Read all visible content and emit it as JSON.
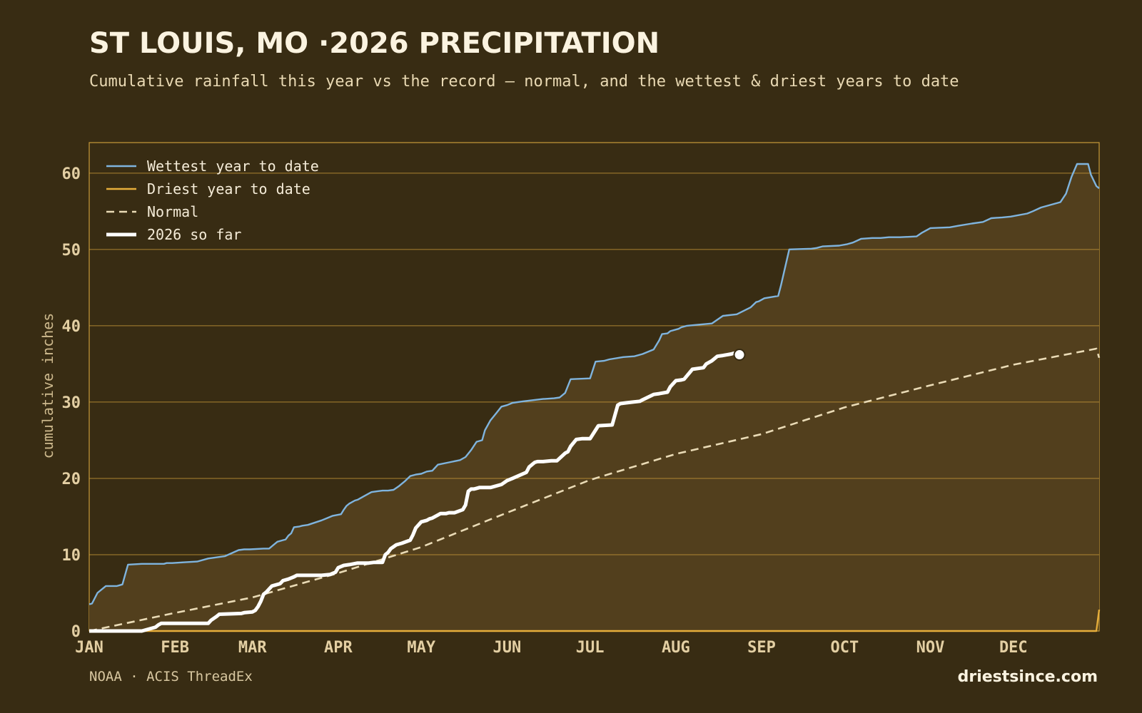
{
  "colors": {
    "background": "#382c13",
    "plot_fill": "#523f1d",
    "grid": "#c89a3a",
    "wettest": "#7fb4de",
    "driest": "#e6ae3b",
    "normal": "#eadbb6",
    "current": "#ffffff"
  },
  "footer": {
    "source": "NOAA · ACIS ThreadEx",
    "brand": "driestsince.com"
  },
  "chart_data": {
    "type": "line",
    "title": "ST LOUIS, MO ·2026 PRECIPITATION",
    "subtitle": "Cumulative rainfall this year vs the record — normal, and the wettest & driest years to date",
    "ylabel": "cumulative inches",
    "xlabel": "",
    "xlim": [
      1,
      366
    ],
    "ylim": [
      0,
      64
    ],
    "yticks": [
      0,
      10,
      20,
      30,
      40,
      50,
      60
    ],
    "x_ticks": [
      {
        "day": 1,
        "label": "JAN"
      },
      {
        "day": 32,
        "label": "FEB"
      },
      {
        "day": 60,
        "label": "MAR"
      },
      {
        "day": 91,
        "label": "APR"
      },
      {
        "day": 121,
        "label": "MAY"
      },
      {
        "day": 152,
        "label": "JUN"
      },
      {
        "day": 182,
        "label": "JUL"
      },
      {
        "day": 213,
        "label": "AUG"
      },
      {
        "day": 244,
        "label": "SEP"
      },
      {
        "day": 274,
        "label": "OCT"
      },
      {
        "day": 305,
        "label": "NOV"
      },
      {
        "day": 335,
        "label": "DEC"
      }
    ],
    "grid": true,
    "legend_position": "top-left",
    "series": [
      {
        "name": "Wettest year to date",
        "key": "wettest",
        "style": "solid",
        "x": [
          1,
          2,
          4,
          7,
          11,
          12,
          13,
          15,
          20,
          23,
          25,
          26,
          28,
          29,
          31,
          35,
          40,
          44,
          50,
          55,
          57,
          59,
          64,
          66,
          69,
          71,
          72,
          73,
          74,
          75,
          77,
          78,
          80,
          85,
          87,
          89,
          92,
          93,
          94,
          95,
          97,
          98,
          100,
          102,
          103,
          105,
          107,
          109,
          111,
          113,
          115,
          117,
          119,
          121,
          123,
          125,
          127,
          131,
          135,
          137,
          139,
          141,
          142,
          143,
          144,
          146,
          148,
          150,
          152,
          154,
          158,
          165,
          169,
          171,
          173,
          175,
          182,
          184,
          187,
          189,
          194,
          198,
          201,
          205,
          207,
          208,
          210,
          211,
          214,
          215,
          217,
          220,
          226,
          230,
          235,
          240,
          242,
          243,
          245,
          250,
          251,
          254,
          262,
          264,
          266,
          272,
          275,
          277,
          280,
          284,
          287,
          290,
          294,
          300,
          302,
          305,
          312,
          315,
          320,
          324,
          327,
          331,
          334,
          340,
          342,
          345,
          352,
          354,
          356,
          358,
          360,
          362,
          363,
          365,
          366
        ],
        "y": [
          3.5,
          3.6,
          5,
          5.9,
          5.9,
          6.0,
          6.1,
          8.7,
          8.8,
          8.8,
          8.8,
          8.8,
          8.8,
          8.9,
          8.9,
          9.0,
          9.1,
          9.5,
          9.8,
          10.6,
          10.7,
          10.7,
          10.8,
          10.8,
          11.7,
          11.9,
          12.0,
          12.5,
          12.8,
          13.6,
          13.7,
          13.8,
          13.9,
          14.5,
          14.8,
          15.1,
          15.3,
          15.9,
          16.4,
          16.7,
          17.1,
          17.2,
          17.6,
          18.0,
          18.2,
          18.3,
          18.4,
          18.4,
          18.5,
          19.0,
          19.6,
          20.3,
          20.5,
          20.6,
          20.9,
          21.0,
          21.8,
          22.1,
          22.4,
          22.8,
          23.7,
          24.8,
          24.9,
          25.0,
          26.3,
          27.6,
          28.5,
          29.4,
          29.6,
          29.9,
          30.1,
          30.4,
          30.5,
          30.6,
          31.2,
          33.0,
          33.1,
          35.3,
          35.4,
          35.6,
          35.9,
          36.0,
          36.3,
          36.9,
          38.1,
          38.9,
          39.0,
          39.3,
          39.6,
          39.8,
          40.0,
          40.1,
          40.3,
          41.3,
          41.5,
          42.4,
          43.1,
          43.2,
          43.6,
          43.9,
          45.3,
          50.0,
          50.1,
          50.2,
          50.4,
          50.5,
          50.7,
          50.9,
          51.4,
          51.5,
          51.5,
          51.6,
          51.6,
          51.7,
          52.2,
          52.8,
          52.9,
          53.1,
          53.4,
          53.6,
          54.1,
          54.2,
          54.3,
          54.7,
          55.0,
          55.5,
          56.2,
          57.3,
          59.5,
          61.2,
          61.2,
          61.2,
          59.8,
          58.3,
          58.0
        ]
      },
      {
        "name": "Driest year to date",
        "key": "driest",
        "style": "solid",
        "x": [
          1,
          365,
          366
        ],
        "y": [
          0,
          0,
          2.8
        ]
      },
      {
        "name": "Normal",
        "key": "normal",
        "style": "dashed",
        "x": [
          1,
          31,
          60,
          91,
          121,
          152,
          182,
          213,
          244,
          274,
          305,
          335,
          365,
          366
        ],
        "y": [
          0,
          2.3,
          4.4,
          7.6,
          11.0,
          15.5,
          19.8,
          23.2,
          25.8,
          29.3,
          32.2,
          34.9,
          37.0,
          35.8
        ]
      },
      {
        "name": "2026 so far",
        "key": "current",
        "style": "thick",
        "x": [
          1,
          20,
          25,
          26,
          27,
          40,
          44,
          45,
          47,
          48,
          56,
          57,
          60,
          61,
          62,
          63,
          64,
          65,
          67,
          68,
          70,
          71,
          73,
          75,
          76,
          78,
          80,
          85,
          88,
          90,
          91,
          93,
          95,
          98,
          100,
          102,
          104,
          107,
          108,
          109,
          110,
          112,
          114,
          117,
          118,
          119,
          121,
          123,
          124,
          125,
          127,
          128,
          130,
          131,
          133,
          136,
          137,
          138,
          139,
          140,
          141,
          142,
          146,
          150,
          152,
          154,
          159,
          160,
          161,
          162,
          163,
          165,
          168,
          170,
          173,
          174,
          175,
          177,
          179,
          182,
          185,
          190,
          192,
          193,
          195,
          200,
          201,
          205,
          207,
          210,
          211,
          213,
          215,
          216,
          219,
          223,
          224,
          226,
          228,
          230,
          233,
          234,
          236
        ],
        "y": [
          0,
          0,
          0.5,
          0.8,
          1.0,
          1.0,
          1.0,
          1.4,
          1.9,
          2.2,
          2.3,
          2.4,
          2.5,
          2.7,
          3.2,
          3.9,
          4.8,
          5.1,
          5.9,
          6.0,
          6.2,
          6.6,
          6.8,
          7.1,
          7.3,
          7.3,
          7.3,
          7.3,
          7.4,
          7.7,
          8.3,
          8.6,
          8.7,
          8.9,
          8.9,
          8.9,
          9.0,
          9.0,
          10.0,
          10.3,
          10.8,
          11.3,
          11.5,
          11.9,
          12.6,
          13.5,
          14.3,
          14.5,
          14.7,
          14.8,
          15.2,
          15.4,
          15.4,
          15.5,
          15.5,
          15.9,
          16.5,
          18.3,
          18.6,
          18.6,
          18.7,
          18.8,
          18.8,
          19.2,
          19.7,
          20.0,
          20.8,
          21.5,
          21.8,
          22.1,
          22.2,
          22.2,
          22.3,
          22.3,
          23.3,
          23.5,
          24.2,
          25.1,
          25.2,
          25.2,
          26.9,
          27.0,
          29.6,
          29.8,
          29.9,
          30.1,
          30.3,
          31.0,
          31.1,
          31.3,
          32.0,
          32.8,
          32.9,
          33.0,
          34.3,
          34.5,
          35.0,
          35.4,
          36.0,
          36.1,
          36.3,
          36.4,
          36.2
        ]
      }
    ],
    "current_marker": {
      "series": "2026 so far",
      "day": 236,
      "value": 36.2
    }
  }
}
